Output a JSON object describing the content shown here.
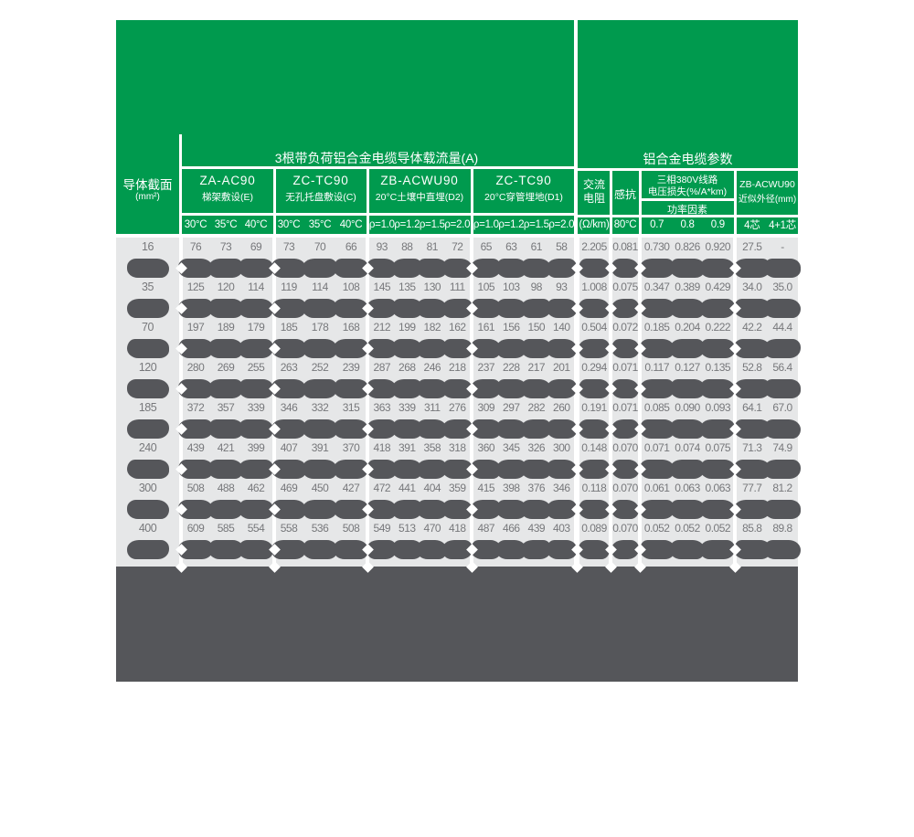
{
  "header": {
    "left_title": "3根带负荷铝合金电缆导体载流量(A)",
    "right_title": "铝合金电缆参数",
    "conductor": {
      "line1": "导体截面",
      "line2": "(mm²)"
    },
    "groups": [
      {
        "name": "ZA-AC90",
        "sub": "梯架敷设(E)",
        "cols": [
          "30°C",
          "35°C",
          "40°C"
        ]
      },
      {
        "name": "ZC-TC90",
        "sub": "无孔托盘敷设(C)",
        "cols": [
          "30°C",
          "35°C",
          "40°C"
        ]
      },
      {
        "name": "ZB-ACWU90",
        "sub": "20°C土壤中直埋(D2)",
        "cols": [
          "ρ=1.0",
          "ρ=1.2",
          "ρ=1.5",
          "ρ=2.0"
        ]
      },
      {
        "name": "ZC-TC90",
        "sub": "20°C穿管埋地(D1)",
        "cols": [
          "ρ=1.0",
          "ρ=1.2",
          "ρ=1.5",
          "ρ=2.0"
        ]
      }
    ],
    "params": {
      "ac_resistance": {
        "label": "交流电阻",
        "unit": "(Ω/km)"
      },
      "reactance": {
        "label": "感抗",
        "unit": "80°C"
      },
      "voltage_loss": {
        "line1": "三相380V线路",
        "line2": "电压损失(%/A*km)",
        "sub_label": "功率因素",
        "cols": [
          "0.7",
          "0.8",
          "0.9"
        ]
      },
      "od": {
        "line1": "ZB-ACWU90",
        "line2": "近似外径(mm)",
        "cols": [
          "4芯",
          "4+1芯"
        ]
      }
    }
  },
  "table": {
    "rows": [
      {
        "size": "16",
        "values": [
          "76",
          "73",
          "69",
          "73",
          "70",
          "66",
          "93",
          "88",
          "81",
          "72",
          "65",
          "63",
          "61",
          "58",
          "2.205",
          "0.081",
          "0.730",
          "0.826",
          "0.920",
          "27.5",
          "-"
        ]
      },
      {
        "size": "35",
        "values": [
          "125",
          "120",
          "114",
          "119",
          "114",
          "108",
          "145",
          "135",
          "130",
          "111",
          "105",
          "103",
          "98",
          "93",
          "1.008",
          "0.075",
          "0.347",
          "0.389",
          "0.429",
          "34.0",
          "35.0"
        ]
      },
      {
        "size": "70",
        "values": [
          "197",
          "189",
          "179",
          "185",
          "178",
          "168",
          "212",
          "199",
          "182",
          "162",
          "161",
          "156",
          "150",
          "140",
          "0.504",
          "0.072",
          "0.185",
          "0.204",
          "0.222",
          "42.2",
          "44.4"
        ]
      },
      {
        "size": "120",
        "values": [
          "280",
          "269",
          "255",
          "263",
          "252",
          "239",
          "287",
          "268",
          "246",
          "218",
          "237",
          "228",
          "217",
          "201",
          "0.294",
          "0.071",
          "0.117",
          "0.127",
          "0.135",
          "52.8",
          "56.4"
        ]
      },
      {
        "size": "185",
        "values": [
          "372",
          "357",
          "339",
          "346",
          "332",
          "315",
          "363",
          "339",
          "311",
          "276",
          "309",
          "297",
          "282",
          "260",
          "0.191",
          "0.071",
          "0.085",
          "0.090",
          "0.093",
          "64.1",
          "67.0"
        ]
      },
      {
        "size": "240",
        "values": [
          "439",
          "421",
          "399",
          "407",
          "391",
          "370",
          "418",
          "391",
          "358",
          "318",
          "360",
          "345",
          "326",
          "300",
          "0.148",
          "0.070",
          "0.071",
          "0.074",
          "0.075",
          "71.3",
          "74.9"
        ]
      },
      {
        "size": "300",
        "values": [
          "508",
          "488",
          "462",
          "469",
          "450",
          "427",
          "472",
          "441",
          "404",
          "359",
          "415",
          "398",
          "376",
          "346",
          "0.118",
          "0.070",
          "0.061",
          "0.063",
          "0.063",
          "77.7",
          "81.2"
        ]
      },
      {
        "size": "400",
        "values": [
          "609",
          "585",
          "554",
          "558",
          "536",
          "508",
          "549",
          "513",
          "470",
          "418",
          "487",
          "466",
          "439",
          "403",
          "0.089",
          "0.070",
          "0.052",
          "0.052",
          "0.052",
          "85.8",
          "89.8"
        ]
      }
    ]
  },
  "colors": {
    "green": "#009A4E",
    "cell_background": "#E6E7E8",
    "redaction_dark": "#55565A",
    "value_text": "#77787B",
    "header_text": "#FFFFFF"
  }
}
